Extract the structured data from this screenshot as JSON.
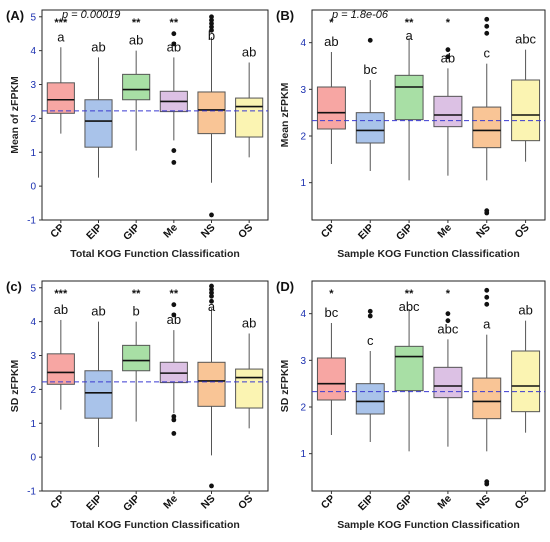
{
  "chart_data": [
    {
      "type": "box",
      "panel": "(A)",
      "pvalue": "p = 0.00019",
      "ylabel": "Mean of zFPKM",
      "xlabel": "Total KOG Function Classification",
      "ylim": [
        -1,
        5.2
      ],
      "yticks": [
        -1,
        0,
        1,
        2,
        3,
        4,
        5
      ],
      "ref_line": 2.22,
      "categories": [
        "CP",
        "EIP",
        "GIP",
        "Me",
        "NS",
        "OS"
      ],
      "colors": [
        "#f7a6a3",
        "#a9c3ea",
        "#a8dfa5",
        "#dcc1e4",
        "#f9c596",
        "#fbf4b2"
      ],
      "boxes": [
        {
          "q1": 2.15,
          "median": 2.55,
          "q3": 3.05,
          "whisker_low": 1.55,
          "whisker_high": 4.1,
          "outliers": [],
          "stars": "***",
          "letter": "a"
        },
        {
          "q1": 1.15,
          "median": 1.92,
          "q3": 2.55,
          "whisker_low": 0.25,
          "whisker_high": 3.8,
          "outliers": [],
          "stars": "",
          "letter": "ab"
        },
        {
          "q1": 2.55,
          "median": 2.85,
          "q3": 3.3,
          "whisker_low": 1.05,
          "whisker_high": 4.0,
          "outliers": [],
          "stars": "**",
          "letter": "ab"
        },
        {
          "q1": 2.2,
          "median": 2.5,
          "q3": 2.8,
          "whisker_low": 1.35,
          "whisker_high": 3.8,
          "outliers": [
            4.5,
            4.2,
            1.05,
            0.7
          ],
          "stars": "**",
          "letter": "ab"
        },
        {
          "q1": 1.55,
          "median": 2.25,
          "q3": 2.78,
          "whisker_low": 0.1,
          "whisker_high": 4.4,
          "outliers": [
            5.0,
            4.9,
            4.8,
            4.7,
            4.6,
            -0.85
          ],
          "stars": "",
          "letter": "b"
        },
        {
          "q1": 1.45,
          "median": 2.35,
          "q3": 2.6,
          "whisker_low": 0.85,
          "whisker_high": 3.65,
          "outliers": [],
          "stars": "",
          "letter": "ab"
        }
      ]
    },
    {
      "type": "box",
      "panel": "(B)",
      "pvalue": "p = 1.8e-06",
      "ylabel": "Mean zFPKM",
      "xlabel": "Sample  KOG Function Classification",
      "ylim": [
        0.2,
        4.7
      ],
      "yticks": [
        1,
        2,
        3,
        4
      ],
      "ref_line": 2.33,
      "categories": [
        "CP",
        "EIP",
        "GIP",
        "Me",
        "NS",
        "OS"
      ],
      "colors": [
        "#f7a6a3",
        "#a9c3ea",
        "#a8dfa5",
        "#dcc1e4",
        "#f9c596",
        "#fbf4b2"
      ],
      "boxes": [
        {
          "q1": 2.15,
          "median": 2.5,
          "q3": 3.05,
          "whisker_low": 1.4,
          "whisker_high": 3.8,
          "outliers": [],
          "stars": "*",
          "letter": "ab"
        },
        {
          "q1": 1.85,
          "median": 2.12,
          "q3": 2.5,
          "whisker_low": 1.25,
          "whisker_high": 3.2,
          "outliers": [
            4.05
          ],
          "stars": "",
          "letter": "bc"
        },
        {
          "q1": 2.35,
          "median": 3.05,
          "q3": 3.3,
          "whisker_low": 1.05,
          "whisker_high": 4.1,
          "outliers": [],
          "stars": "**",
          "letter": "a"
        },
        {
          "q1": 2.2,
          "median": 2.45,
          "q3": 2.85,
          "whisker_low": 1.15,
          "whisker_high": 3.45,
          "outliers": [
            3.85,
            3.7
          ],
          "stars": "*",
          "letter": "ab"
        },
        {
          "q1": 1.75,
          "median": 2.12,
          "q3": 2.62,
          "whisker_low": 1.05,
          "whisker_high": 3.55,
          "outliers": [
            4.5,
            4.35,
            4.2,
            0.4,
            0.35
          ],
          "stars": "",
          "letter": "c"
        },
        {
          "q1": 1.9,
          "median": 2.45,
          "q3": 3.2,
          "whisker_low": 1.45,
          "whisker_high": 3.85,
          "outliers": [],
          "stars": "",
          "letter": "abc"
        }
      ]
    },
    {
      "type": "box",
      "panel": "(c)",
      "pvalue": "",
      "ylabel": "SD zFPKM",
      "xlabel": "Total KOG Function Classification",
      "ylim": [
        -1,
        5.2
      ],
      "yticks": [
        -1,
        0,
        1,
        2,
        3,
        4,
        5
      ],
      "ref_line": 2.22,
      "categories": [
        "CP",
        "EIP",
        "GIP",
        "Me",
        "NS",
        "OS"
      ],
      "colors": [
        "#f7a6a3",
        "#a9c3ea",
        "#a8dfa5",
        "#dcc1e4",
        "#f9c596",
        "#fbf4b2"
      ],
      "boxes": [
        {
          "q1": 2.15,
          "median": 2.5,
          "q3": 3.05,
          "whisker_low": 1.4,
          "whisker_high": 4.05,
          "outliers": [],
          "stars": "***",
          "letter": "ab"
        },
        {
          "q1": 1.15,
          "median": 1.9,
          "q3": 2.55,
          "whisker_low": 0.3,
          "whisker_high": 4.0,
          "outliers": [],
          "stars": "",
          "letter": "ab"
        },
        {
          "q1": 2.55,
          "median": 2.85,
          "q3": 3.3,
          "whisker_low": 1.05,
          "whisker_high": 4.0,
          "outliers": [],
          "stars": "**",
          "letter": "b"
        },
        {
          "q1": 2.2,
          "median": 2.48,
          "q3": 2.8,
          "whisker_low": 1.3,
          "whisker_high": 3.75,
          "outliers": [
            4.5,
            4.2,
            1.2,
            1.1,
            0.7
          ],
          "stars": "**",
          "letter": "ab"
        },
        {
          "q1": 1.5,
          "median": 2.25,
          "q3": 2.8,
          "whisker_low": 0.05,
          "whisker_high": 4.4,
          "outliers": [
            5.05,
            4.95,
            4.85,
            4.75,
            4.6,
            -0.85
          ],
          "stars": "",
          "letter": "a"
        },
        {
          "q1": 1.45,
          "median": 2.35,
          "q3": 2.6,
          "whisker_low": 0.85,
          "whisker_high": 3.65,
          "outliers": [],
          "stars": "",
          "letter": "ab"
        }
      ]
    },
    {
      "type": "box",
      "panel": "(D)",
      "pvalue": "",
      "ylabel": "SD zFPKM",
      "xlabel": "Sample KOG Function Classification",
      "ylim": [
        0.2,
        4.7
      ],
      "yticks": [
        1,
        2,
        3,
        4
      ],
      "ref_line": 2.33,
      "categories": [
        "CP",
        "EIP",
        "GIP",
        "Me",
        "NS",
        "OS"
      ],
      "colors": [
        "#f7a6a3",
        "#a9c3ea",
        "#a8dfa5",
        "#dcc1e4",
        "#f9c596",
        "#fbf4b2"
      ],
      "boxes": [
        {
          "q1": 2.15,
          "median": 2.5,
          "q3": 3.05,
          "whisker_low": 1.4,
          "whisker_high": 3.8,
          "outliers": [],
          "stars": "*",
          "letter": "bc"
        },
        {
          "q1": 1.85,
          "median": 2.12,
          "q3": 2.5,
          "whisker_low": 1.25,
          "whisker_high": 3.2,
          "outliers": [
            4.05,
            3.95
          ],
          "stars": "",
          "letter": "c"
        },
        {
          "q1": 2.35,
          "median": 3.08,
          "q3": 3.3,
          "whisker_low": 1.05,
          "whisker_high": 4.1,
          "outliers": [],
          "stars": "**",
          "letter": "abc"
        },
        {
          "q1": 2.2,
          "median": 2.45,
          "q3": 2.85,
          "whisker_low": 1.15,
          "whisker_high": 3.45,
          "outliers": [
            4.0,
            3.85
          ],
          "stars": "*",
          "letter": "abc"
        },
        {
          "q1": 1.75,
          "median": 2.12,
          "q3": 2.62,
          "whisker_low": 1.05,
          "whisker_high": 3.55,
          "outliers": [
            4.5,
            4.35,
            4.2,
            0.4,
            0.35
          ],
          "stars": "",
          "letter": "a"
        },
        {
          "q1": 1.9,
          "median": 2.45,
          "q3": 3.2,
          "whisker_low": 1.45,
          "whisker_high": 3.85,
          "outliers": [],
          "stars": "",
          "letter": "ab"
        }
      ]
    }
  ]
}
